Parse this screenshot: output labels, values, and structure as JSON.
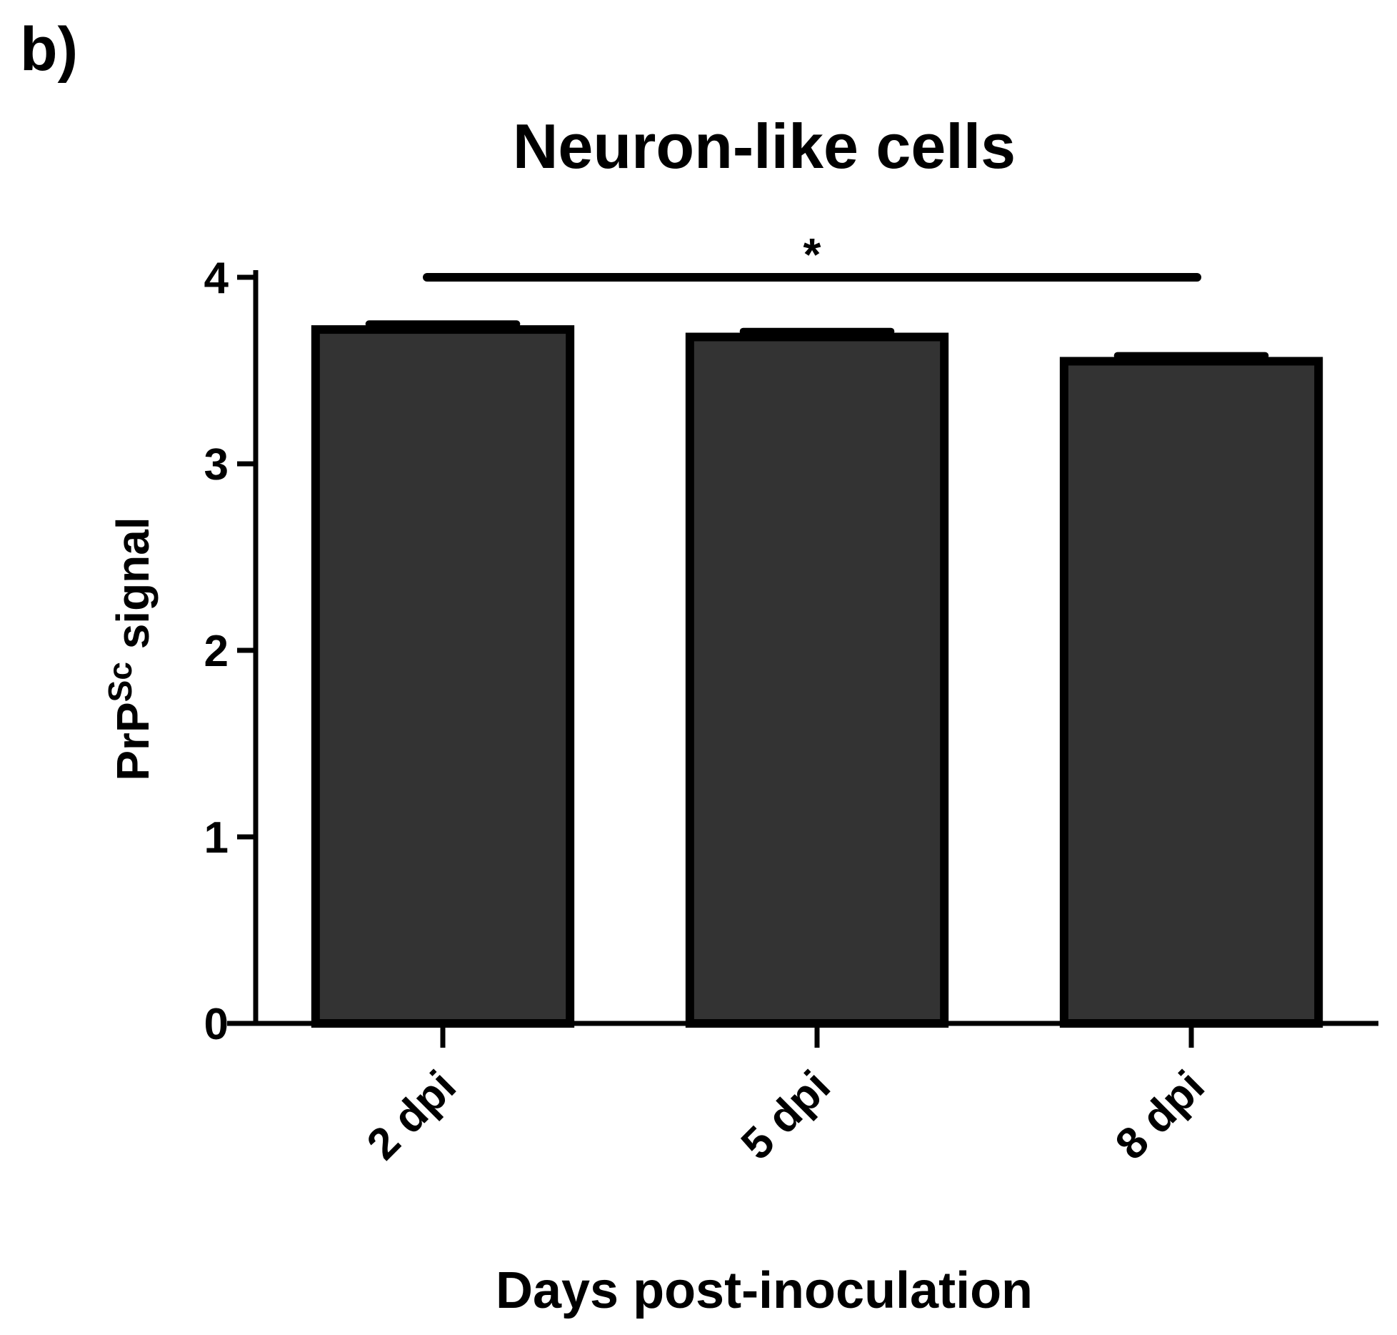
{
  "chart_data": {
    "type": "bar",
    "panel_label": "b)",
    "title": "Neuron-like cells",
    "xlabel": "Days post-inoculation",
    "ylabel": {
      "main": "PrP",
      "superscript": "Sc",
      "rest": " signal"
    },
    "categories": [
      "2 dpi",
      "5 dpi",
      "8 dpi"
    ],
    "values": [
      3.72,
      3.68,
      3.55
    ],
    "errors": [
      0.03,
      0.03,
      0.03
    ],
    "ylim": [
      0,
      4
    ],
    "yticks": [
      "0",
      "1",
      "2",
      "3",
      "4"
    ],
    "significance": {
      "from": 0,
      "to": 2,
      "label": "*"
    },
    "grid": false,
    "legend": "none",
    "colors": {
      "bar_fill": "#333333",
      "bar_stroke": "#000000",
      "axis": "#000000"
    }
  }
}
